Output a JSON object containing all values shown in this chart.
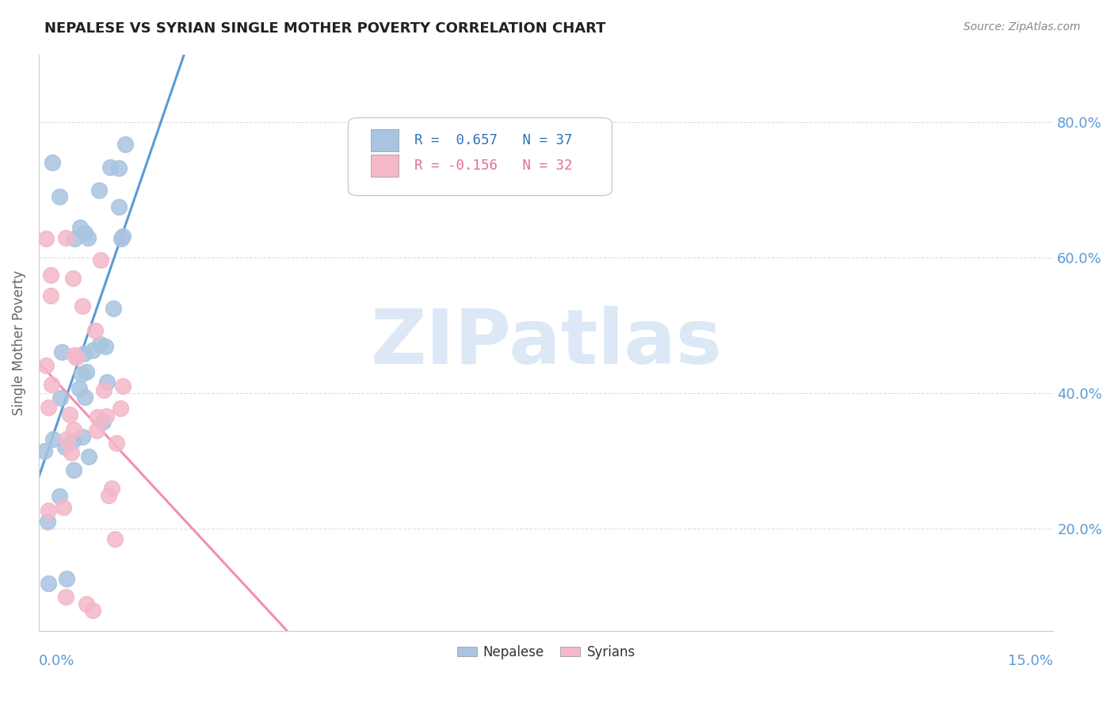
{
  "title": "NEPALESE VS SYRIAN SINGLE MOTHER POVERTY CORRELATION CHART",
  "source": "Source: ZipAtlas.com",
  "ylabel": "Single Mother Poverty",
  "ytick_values": [
    0.2,
    0.4,
    0.6,
    0.8
  ],
  "xlim": [
    0.0,
    0.15
  ],
  "ylim": [
    0.05,
    0.9
  ],
  "R_nepalese": 0.657,
  "N_nepalese": 37,
  "R_syrian": -0.156,
  "N_syrian": 32,
  "nepalese_color": "#a8c4e0",
  "syrian_color": "#f4b8c8",
  "nepalese_line_color": "#5b9bd5",
  "syrian_line_color": "#f48faa",
  "legend_r_nep_color": "#2e75b6",
  "legend_r_syr_color": "#e07090",
  "watermark_color": "#dce8f5",
  "axis_label_color": "#5b9bd5",
  "ylabel_color": "#666666",
  "title_color": "#222222",
  "source_color": "#888888",
  "grid_color": "#dddddd",
  "spine_color": "#cccccc"
}
